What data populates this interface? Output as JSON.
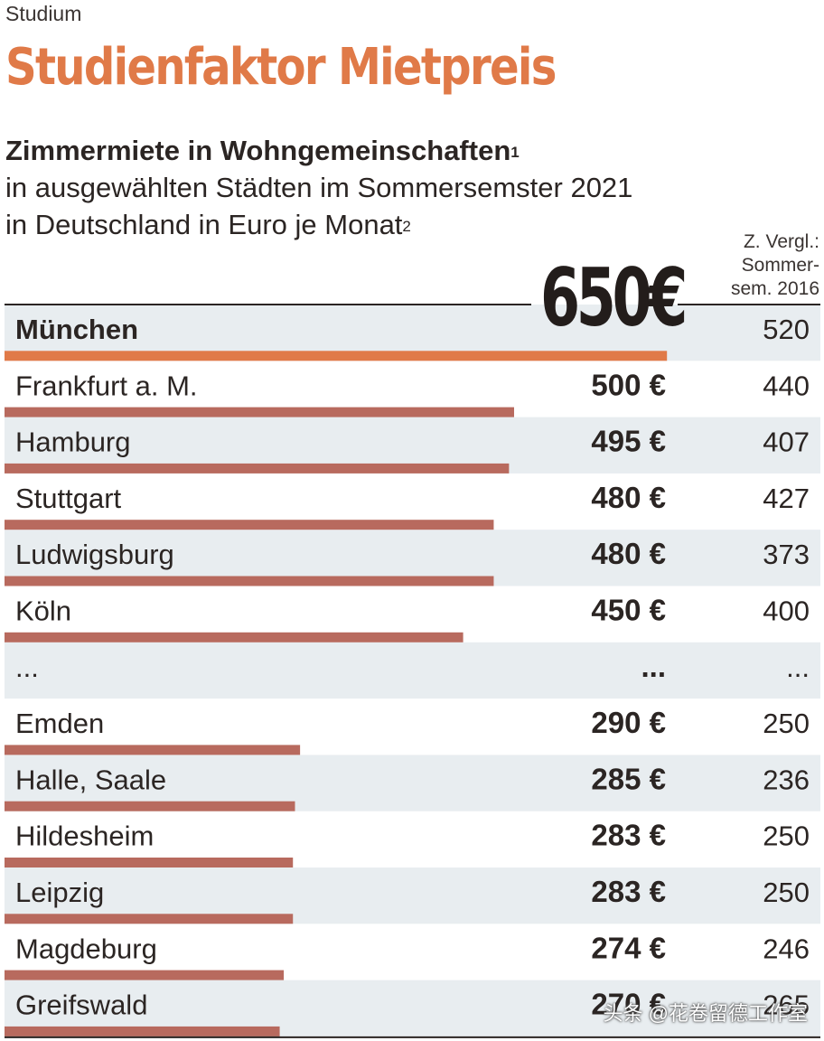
{
  "kicker": "Studium",
  "headline": "Studienfaktor Mietpreis",
  "subhead": {
    "line1": "Zimmermiete in Wohngemeinschaften",
    "line1_sup": "1",
    "line2": "in ausgewählten Städten im Sommersemster 2021",
    "line3": "in Deutschland in Euro je Monat",
    "line3_sup": "2"
  },
  "compare_header": {
    "line1": "Z. Vergl.:",
    "line2": "Sommer-",
    "line3": "sem. 2016"
  },
  "highlight_value": "650€",
  "colors": {
    "accent": "#e07a48",
    "bar": "#b86a5e",
    "row_shade": "#e8edf0",
    "text": "#2b2523"
  },
  "chart_data": {
    "type": "bar",
    "orientation": "horizontal",
    "unit": "€",
    "title": "Zimmermiete in Wohngemeinschaften",
    "categories": [
      "München",
      "Frankfurt a. M.",
      "Hamburg",
      "Stuttgart",
      "Ludwigsburg",
      "Köln",
      "...",
      "Emden",
      "Halle, Saale",
      "Hildesheim",
      "Leipzig",
      "Magdeburg",
      "Greifswald"
    ],
    "value_labels": [
      "650€",
      "500 €",
      "495 €",
      "480 €",
      "480 €",
      "450 €",
      "...",
      "290 €",
      "285 €",
      "283 €",
      "283 €",
      "274 €",
      "270 €"
    ],
    "series": [
      {
        "name": "Sommersemester 2021",
        "values": [
          650,
          500,
          495,
          480,
          480,
          450,
          null,
          290,
          285,
          283,
          283,
          274,
          270
        ]
      },
      {
        "name": "Sommersemester 2016",
        "values": [
          520,
          440,
          407,
          427,
          373,
          400,
          null,
          250,
          236,
          250,
          250,
          246,
          265
        ]
      }
    ],
    "compare_labels": [
      "520",
      "440",
      "407",
      "427",
      "373",
      "400",
      "...",
      "250",
      "236",
      "250",
      "250",
      "246",
      "265"
    ],
    "xlim": [
      0,
      650
    ]
  },
  "watermark": "头条 @花卷留德工作室"
}
